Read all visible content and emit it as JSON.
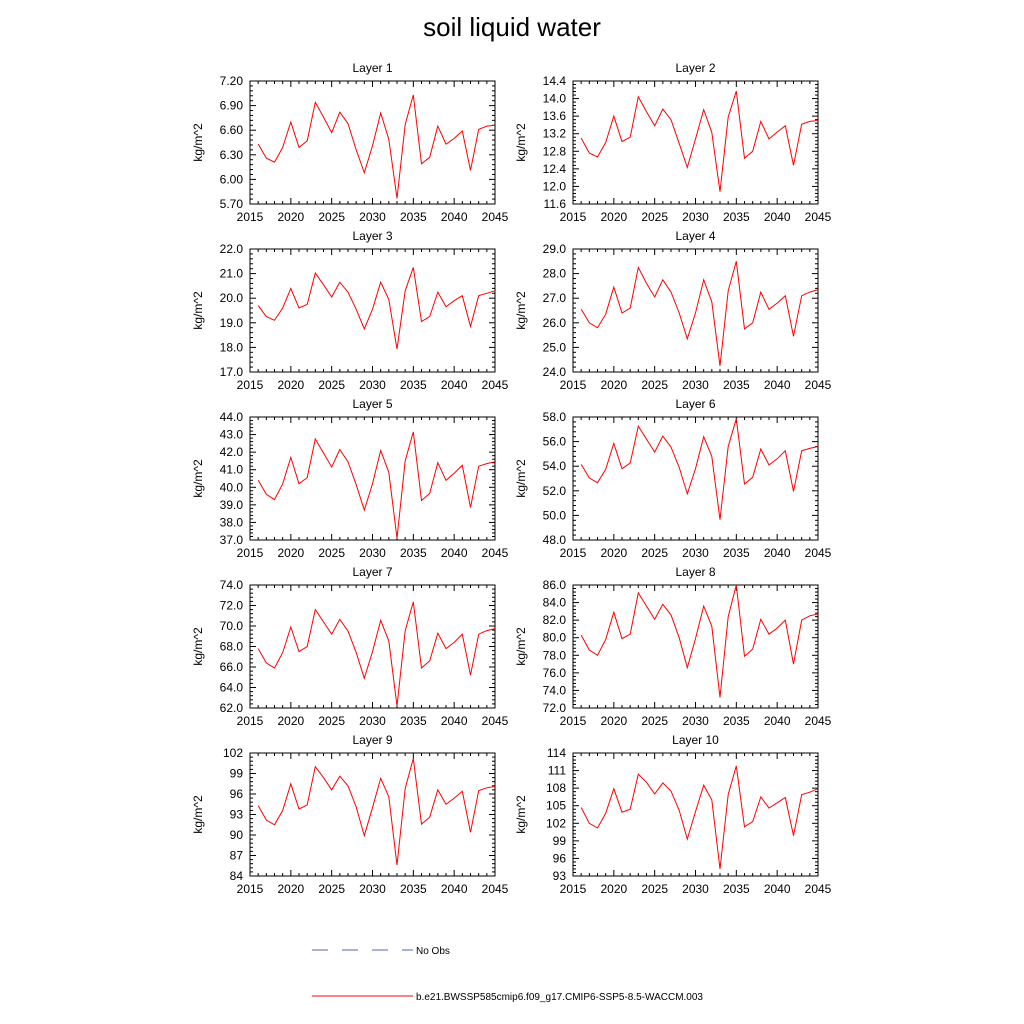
{
  "title": "soil liquid water",
  "legend": {
    "obs_label": "No Obs",
    "obs_color": "#5560c0",
    "model_label": "b.e21.BWSSP585cmip6.f09_g17.CMIP6-SSP5-8.5-WACCM.003",
    "model_color": "#ff0000"
  },
  "chart_data": [
    {
      "type": "line",
      "title": "Layer 1",
      "ylabel": "kg/m^2",
      "xlim": [
        2015,
        2045
      ],
      "ylim": [
        5.7,
        7.2
      ],
      "xticks": [
        "2015",
        "2020",
        "2025",
        "2030",
        "2035",
        "2040",
        "2045"
      ],
      "yticks": [
        "5.70",
        "6.00",
        "6.30",
        "6.60",
        "6.90",
        "7.20"
      ],
      "x": [
        2016,
        2017,
        2018,
        2019,
        2020,
        2021,
        2022,
        2023,
        2024,
        2025,
        2026,
        2027,
        2028,
        2029,
        2030,
        2031,
        2032,
        2033,
        2034,
        2035,
        2036,
        2037,
        2038,
        2039,
        2040,
        2041,
        2042,
        2043,
        2044,
        2045
      ],
      "series": [
        {
          "values": [
            6.43,
            6.26,
            6.21,
            6.39,
            6.7,
            6.39,
            6.47,
            6.94,
            6.76,
            6.57,
            6.82,
            6.68,
            6.36,
            6.08,
            6.41,
            6.81,
            6.49,
            5.77,
            6.67,
            7.03,
            6.19,
            6.27,
            6.65,
            6.43,
            6.5,
            6.59,
            6.11,
            6.61,
            6.65,
            6.66
          ]
        }
      ]
    },
    {
      "type": "line",
      "title": "Layer 2",
      "ylabel": "kg/m^2",
      "xlim": [
        2015,
        2045
      ],
      "ylim": [
        11.6,
        14.4
      ],
      "xticks": [
        "2015",
        "2020",
        "2025",
        "2030",
        "2035",
        "2040",
        "2045"
      ],
      "yticks": [
        "11.6",
        "12.0",
        "12.4",
        "12.8",
        "13.2",
        "13.6",
        "14.0",
        "14.4"
      ],
      "x": [
        2016,
        2017,
        2018,
        2019,
        2020,
        2021,
        2022,
        2023,
        2024,
        2025,
        2026,
        2027,
        2028,
        2029,
        2030,
        2031,
        2032,
        2033,
        2034,
        2035,
        2036,
        2037,
        2038,
        2039,
        2040,
        2041,
        2042,
        2043,
        2044,
        2045
      ],
      "series": [
        {
          "values": [
            13.1,
            12.76,
            12.67,
            13.0,
            13.6,
            13.02,
            13.12,
            14.04,
            13.7,
            13.38,
            13.76,
            13.52,
            12.98,
            12.43,
            13.08,
            13.75,
            13.23,
            11.88,
            13.58,
            14.17,
            12.64,
            12.8,
            13.48,
            13.08,
            13.24,
            13.38,
            12.48,
            13.42,
            13.48,
            13.5
          ]
        }
      ]
    },
    {
      "type": "line",
      "title": "Layer 3",
      "ylabel": "kg/m^2",
      "xlim": [
        2015,
        2045
      ],
      "ylim": [
        17.0,
        22.0
      ],
      "xticks": [
        "2015",
        "2020",
        "2025",
        "2030",
        "2035",
        "2040",
        "2045"
      ],
      "yticks": [
        "17.0",
        "18.0",
        "19.0",
        "20.0",
        "21.0",
        "22.0"
      ],
      "x": [
        2016,
        2017,
        2018,
        2019,
        2020,
        2021,
        2022,
        2023,
        2024,
        2025,
        2026,
        2027,
        2028,
        2029,
        2030,
        2031,
        2032,
        2033,
        2034,
        2035,
        2036,
        2037,
        2038,
        2039,
        2040,
        2041,
        2042,
        2043,
        2044,
        2045
      ],
      "series": [
        {
          "values": [
            19.7,
            19.25,
            19.1,
            19.6,
            20.4,
            19.6,
            19.75,
            21.02,
            20.55,
            20.05,
            20.65,
            20.25,
            19.55,
            18.75,
            19.55,
            20.65,
            19.95,
            17.93,
            20.3,
            21.25,
            19.05,
            19.25,
            20.25,
            19.65,
            19.9,
            20.1,
            18.85,
            20.1,
            20.2,
            20.3
          ]
        }
      ]
    },
    {
      "type": "line",
      "title": "Layer 4",
      "ylabel": "kg/m^2",
      "xlim": [
        2015,
        2045
      ],
      "ylim": [
        24.0,
        29.0
      ],
      "xticks": [
        "2015",
        "2020",
        "2025",
        "2030",
        "2035",
        "2040",
        "2045"
      ],
      "yticks": [
        "24.0",
        "25.0",
        "26.0",
        "27.0",
        "28.0",
        "29.0"
      ],
      "x": [
        2016,
        2017,
        2018,
        2019,
        2020,
        2021,
        2022,
        2023,
        2024,
        2025,
        2026,
        2027,
        2028,
        2029,
        2030,
        2031,
        2032,
        2033,
        2034,
        2035,
        2036,
        2037,
        2038,
        2039,
        2040,
        2041,
        2042,
        2043,
        2044,
        2045
      ],
      "series": [
        {
          "values": [
            26.55,
            26.0,
            25.8,
            26.35,
            27.45,
            26.4,
            26.6,
            28.25,
            27.6,
            27.05,
            27.75,
            27.25,
            26.4,
            25.35,
            26.4,
            27.75,
            26.85,
            24.25,
            27.3,
            28.5,
            25.75,
            26.0,
            27.25,
            26.55,
            26.8,
            27.1,
            25.45,
            27.1,
            27.25,
            27.35
          ]
        }
      ]
    },
    {
      "type": "line",
      "title": "Layer 5",
      "ylabel": "kg/m^2",
      "xlim": [
        2015,
        2045
      ],
      "ylim": [
        37.0,
        44.0
      ],
      "xticks": [
        "2015",
        "2020",
        "2025",
        "2030",
        "2035",
        "2040",
        "2045"
      ],
      "yticks": [
        "37.0",
        "38.0",
        "39.0",
        "40.0",
        "41.0",
        "42.0",
        "43.0",
        "44.0"
      ],
      "x": [
        2016,
        2017,
        2018,
        2019,
        2020,
        2021,
        2022,
        2023,
        2024,
        2025,
        2026,
        2027,
        2028,
        2029,
        2030,
        2031,
        2032,
        2033,
        2034,
        2035,
        2036,
        2037,
        2038,
        2039,
        2040,
        2041,
        2042,
        2043,
        2044,
        2045
      ],
      "series": [
        {
          "values": [
            40.4,
            39.6,
            39.3,
            40.2,
            41.7,
            40.2,
            40.55,
            42.75,
            41.95,
            41.15,
            42.15,
            41.45,
            40.15,
            38.7,
            40.2,
            42.1,
            40.85,
            37.1,
            41.5,
            43.15,
            39.25,
            39.65,
            41.4,
            40.4,
            40.8,
            41.25,
            38.85,
            41.2,
            41.35,
            41.45
          ]
        }
      ]
    },
    {
      "type": "line",
      "title": "Layer 6",
      "ylabel": "kg/m^2",
      "xlim": [
        2015,
        2045
      ],
      "ylim": [
        48.0,
        58.0
      ],
      "xticks": [
        "2015",
        "2020",
        "2025",
        "2030",
        "2035",
        "2040",
        "2045"
      ],
      "yticks": [
        "48.0",
        "50.0",
        "52.0",
        "54.0",
        "56.0",
        "58.0"
      ],
      "x": [
        2016,
        2017,
        2018,
        2019,
        2020,
        2021,
        2022,
        2023,
        2024,
        2025,
        2026,
        2027,
        2028,
        2029,
        2030,
        2031,
        2032,
        2033,
        2034,
        2035,
        2036,
        2037,
        2038,
        2039,
        2040,
        2041,
        2042,
        2043,
        2044,
        2045
      ],
      "series": [
        {
          "values": [
            54.15,
            53.05,
            52.65,
            53.75,
            55.85,
            53.8,
            54.25,
            57.25,
            56.2,
            55.15,
            56.45,
            55.55,
            53.9,
            51.75,
            53.8,
            56.4,
            54.8,
            49.65,
            55.6,
            57.85,
            52.55,
            53.1,
            55.4,
            54.1,
            54.6,
            55.25,
            51.95,
            55.25,
            55.45,
            55.6
          ]
        }
      ]
    },
    {
      "type": "line",
      "title": "Layer 7",
      "ylabel": "kg/m^2",
      "xlim": [
        2015,
        2045
      ],
      "ylim": [
        62.0,
        74.0
      ],
      "xticks": [
        "2015",
        "2020",
        "2025",
        "2030",
        "2035",
        "2040",
        "2045"
      ],
      "yticks": [
        "62.0",
        "64.0",
        "66.0",
        "68.0",
        "70.0",
        "72.0",
        "74.0"
      ],
      "x": [
        2016,
        2017,
        2018,
        2019,
        2020,
        2021,
        2022,
        2023,
        2024,
        2025,
        2026,
        2027,
        2028,
        2029,
        2030,
        2031,
        2032,
        2033,
        2034,
        2035,
        2036,
        2037,
        2038,
        2039,
        2040,
        2041,
        2042,
        2043,
        2044,
        2045
      ],
      "series": [
        {
          "values": [
            67.8,
            66.4,
            65.9,
            67.4,
            69.9,
            67.5,
            68.0,
            71.6,
            70.4,
            69.2,
            70.65,
            69.5,
            67.4,
            64.9,
            67.5,
            70.55,
            68.55,
            62.2,
            69.55,
            72.35,
            65.9,
            66.6,
            69.3,
            67.8,
            68.4,
            69.2,
            65.2,
            69.2,
            69.55,
            69.75
          ]
        }
      ]
    },
    {
      "type": "line",
      "title": "Layer 8",
      "ylabel": "kg/m^2",
      "xlim": [
        2015,
        2045
      ],
      "ylim": [
        72.0,
        86.0
      ],
      "xticks": [
        "2015",
        "2020",
        "2025",
        "2030",
        "2035",
        "2040",
        "2045"
      ],
      "yticks": [
        "72.0",
        "74.0",
        "76.0",
        "78.0",
        "80.0",
        "82.0",
        "84.0",
        "86.0"
      ],
      "x": [
        2016,
        2017,
        2018,
        2019,
        2020,
        2021,
        2022,
        2023,
        2024,
        2025,
        2026,
        2027,
        2028,
        2029,
        2030,
        2031,
        2032,
        2033,
        2034,
        2035,
        2036,
        2037,
        2038,
        2039,
        2040,
        2041,
        2042,
        2043,
        2044,
        2045
      ],
      "series": [
        {
          "values": [
            80.3,
            78.6,
            78.0,
            79.8,
            82.9,
            79.9,
            80.4,
            85.1,
            83.6,
            82.1,
            83.8,
            82.6,
            80.0,
            76.6,
            79.9,
            83.6,
            81.3,
            73.2,
            82.4,
            86.0,
            77.9,
            78.7,
            82.1,
            80.4,
            81.1,
            82.0,
            77.0,
            82.0,
            82.5,
            82.7
          ]
        }
      ]
    },
    {
      "type": "line",
      "title": "Layer 9",
      "ylabel": "kg/m^2",
      "xlim": [
        2015,
        2045
      ],
      "ylim": [
        84,
        102
      ],
      "xticks": [
        "2015",
        "2020",
        "2025",
        "2030",
        "2035",
        "2040",
        "2045"
      ],
      "yticks": [
        "84",
        "87",
        "90",
        "93",
        "96",
        "99",
        "102"
      ],
      "x": [
        2016,
        2017,
        2018,
        2019,
        2020,
        2021,
        2022,
        2023,
        2024,
        2025,
        2026,
        2027,
        2028,
        2029,
        2030,
        2031,
        2032,
        2033,
        2034,
        2035,
        2036,
        2037,
        2038,
        2039,
        2040,
        2041,
        2042,
        2043,
        2044,
        2045
      ],
      "series": [
        {
          "values": [
            94.3,
            92.2,
            91.5,
            93.6,
            97.5,
            93.8,
            94.4,
            100.0,
            98.4,
            96.6,
            98.6,
            97.2,
            94.1,
            89.9,
            94.0,
            98.3,
            95.6,
            85.6,
            96.8,
            101.2,
            91.6,
            92.6,
            96.6,
            94.5,
            95.4,
            96.4,
            90.4,
            96.5,
            96.9,
            97.1
          ]
        }
      ]
    },
    {
      "type": "line",
      "title": "Layer 10",
      "ylabel": "kg/m^2",
      "xlim": [
        2015,
        2045
      ],
      "ylim": [
        93,
        114
      ],
      "xticks": [
        "2015",
        "2020",
        "2025",
        "2030",
        "2035",
        "2040",
        "2045"
      ],
      "yticks": [
        "93",
        "96",
        "99",
        "102",
        "105",
        "108",
        "111",
        "114"
      ],
      "x": [
        2016,
        2017,
        2018,
        2019,
        2020,
        2021,
        2022,
        2023,
        2024,
        2025,
        2026,
        2027,
        2028,
        2029,
        2030,
        2031,
        2032,
        2033,
        2034,
        2035,
        2036,
        2037,
        2038,
        2039,
        2040,
        2041,
        2042,
        2043,
        2044,
        2045
      ],
      "series": [
        {
          "values": [
            104.7,
            102.0,
            101.2,
            103.7,
            107.9,
            103.9,
            104.4,
            110.4,
            109.0,
            107.0,
            108.9,
            107.5,
            104.2,
            99.3,
            104.0,
            108.5,
            106.0,
            94.2,
            106.9,
            111.8,
            101.4,
            102.3,
            106.5,
            104.6,
            105.5,
            106.4,
            99.9,
            106.9,
            107.3,
            107.9
          ]
        }
      ]
    }
  ]
}
